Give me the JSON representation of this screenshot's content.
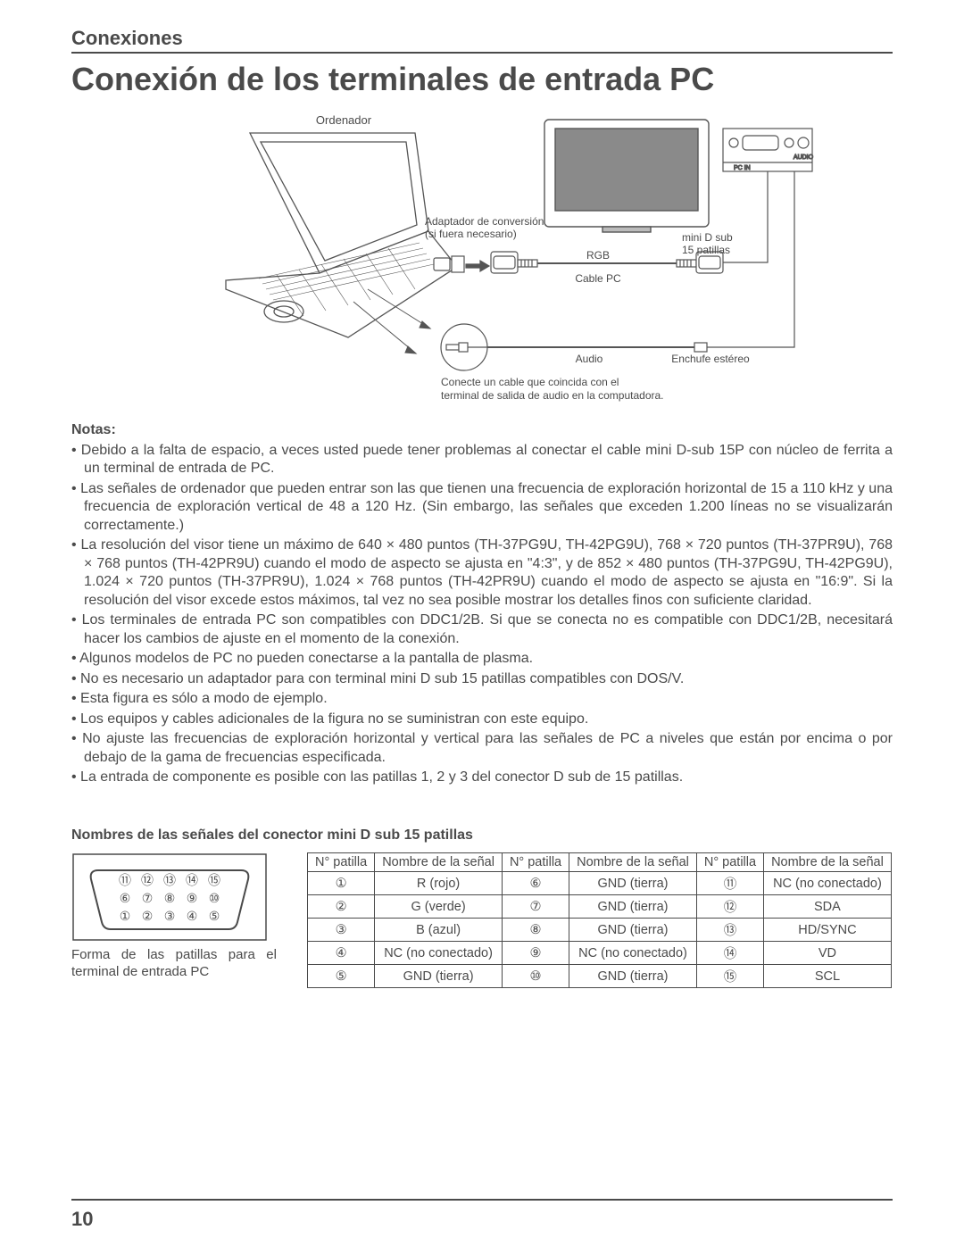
{
  "section_header": "Conexiones",
  "title": "Conexión de los terminales de entrada PC",
  "diagram": {
    "ordenador": "Ordenador",
    "adaptador1": "Adaptador de conversión",
    "adaptador2": "(si fuera necesario)",
    "rgb": "RGB",
    "cable_pc": "Cable PC",
    "mini_d_sub1": "mini D sub",
    "mini_d_sub2": "15 patillas",
    "audio_label": "Audio",
    "enchufe": "Enchufe estéreo",
    "conecte1": "Conecte un cable que coincida con el",
    "conecte2": "terminal de salida de audio en la computadora.",
    "panel_audio": "AUDIO",
    "panel_pcin": "PC IN"
  },
  "notes_heading": "Notas:",
  "notes": [
    "Debido a la falta de espacio, a veces usted puede tener problemas al conectar el cable mini D-sub 15P con núcleo de ferrita a un terminal de entrada de PC.",
    "Las señales de ordenador que pueden entrar son las que tienen una frecuencia de exploración horizontal de 15 a 110 kHz y una frecuencia de exploración vertical de 48 a 120 Hz. (Sin embargo, las señales que exceden 1.200 líneas no se visualizarán correctamente.)",
    "La resolución del visor tiene un máximo de 640 × 480 puntos (TH-37PG9U, TH-42PG9U), 768 × 720 puntos (TH-37PR9U), 768 × 768 puntos (TH-42PR9U) cuando el modo de aspecto se ajusta en \"4:3\", y de 852 × 480 puntos (TH-37PG9U, TH-42PG9U), 1.024 × 720 puntos (TH-37PR9U), 1.024 × 768 puntos (TH-42PR9U) cuando el modo de aspecto se ajusta en \"16:9\". Si la resolución del visor excede estos máximos, tal vez no sea posible mostrar los detalles finos con suficiente claridad.",
    "Los terminales de entrada PC son compatibles con DDC1/2B. Si que se conecta no es compatible con DDC1/2B, necesitará hacer los cambios de ajuste en el momento de la conexión.",
    "Algunos modelos de PC no pueden conectarse a la pantalla de plasma.",
    "No es necesario un adaptador para con terminal mini D sub 15 patillas compatibles con DOS/V.",
    "Esta figura es sólo a modo de ejemplo.",
    "Los equipos y cables adicionales de la figura no se suministran con este equipo.",
    "No ajuste las frecuencias de exploración horizontal y vertical para las señales de PC a niveles que están por encima o por debajo de la gama de frecuencias especificada.",
    "La entrada de componente es posible con las patillas 1, 2 y 3 del conector D sub de 15 patillas."
  ],
  "pin_heading": "Nombres de las señales del conector mini D sub 15 patillas",
  "pin_caption": "Forma de las patillas para el terminal de entrada PC",
  "pin_table": {
    "headers": [
      "N° patilla",
      "Nombre de la señal",
      "N° patilla",
      "Nombre de la señal",
      "N° patilla",
      "Nombre de la señal"
    ],
    "rows": [
      [
        "①",
        "R (rojo)",
        "⑥",
        "GND (tierra)",
        "⑪",
        "NC (no conectado)"
      ],
      [
        "②",
        "G (verde)",
        "⑦",
        "GND (tierra)",
        "⑫",
        "SDA"
      ],
      [
        "③",
        "B (azul)",
        "⑧",
        "GND (tierra)",
        "⑬",
        "HD/SYNC"
      ],
      [
        "④",
        "NC (no conectado)",
        "⑨",
        "NC (no conectado)",
        "⑭",
        "VD"
      ],
      [
        "⑤",
        "GND (tierra)",
        "⑩",
        "GND (tierra)",
        "⑮",
        "SCL"
      ]
    ]
  },
  "connector_pins": {
    "row_top": [
      "⑪",
      "⑫",
      "⑬",
      "⑭",
      "⑮"
    ],
    "row_mid": [
      "⑥",
      "⑦",
      "⑧",
      "⑨",
      "⑩"
    ],
    "row_bottom": [
      "①",
      "②",
      "③",
      "④",
      "⑤"
    ]
  },
  "page_number": "10",
  "colors": {
    "text": "#4a4a4a",
    "rule": "#4a4a4a",
    "stroke": "#555555",
    "fill_light": "#ffffff",
    "fill_gray": "#bfbfbf",
    "fill_dark": "#6e6e6e"
  }
}
